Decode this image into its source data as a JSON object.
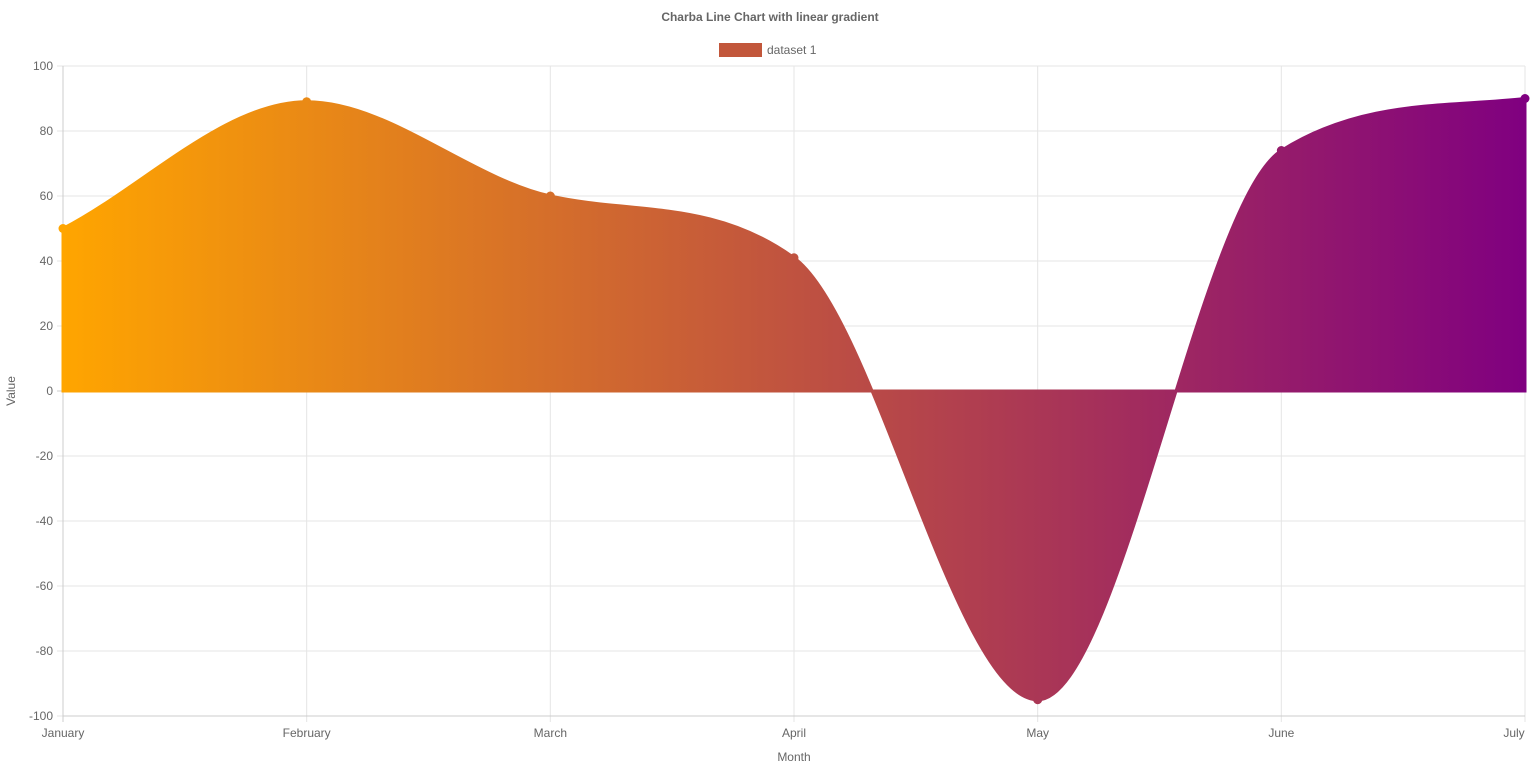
{
  "chart_data": {
    "type": "area",
    "title": "Charba Line Chart with linear gradient",
    "xlabel": "Month",
    "ylabel": "Value",
    "categories": [
      "January",
      "February",
      "March",
      "April",
      "May",
      "June",
      "July"
    ],
    "series": [
      {
        "name": "dataset 1",
        "values": [
          50,
          89,
          60,
          41,
          -95,
          74,
          90
        ]
      }
    ],
    "ylim": [
      -100,
      100
    ],
    "yticks": [
      100,
      80,
      60,
      40,
      20,
      0,
      -20,
      -40,
      -60,
      -80,
      -100
    ],
    "grid": true,
    "legend": "top-center",
    "colors": {
      "gradient_start": "#FFA500",
      "gradient_end": "#800080",
      "legend_swatch": "#C2573B",
      "grid": "#e5e5e5"
    }
  }
}
